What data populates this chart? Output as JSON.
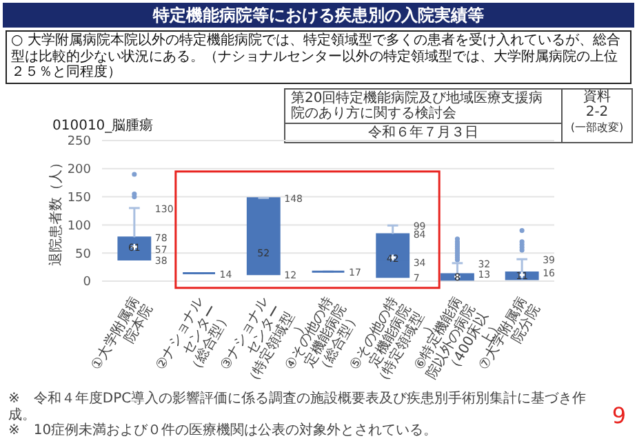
{
  "chart_data": {
    "type": "box",
    "title": "特定機能病院等における疾患別の入院実績等",
    "subtitle": "○ 大学附属病院本院以外の特定機能病院では、特定領域型で多くの患者を受け入れているが、総合型は比較的少ない状況にある。（ナショナルセンター以外の特定領域型では、大学附属病院の上位２５％と同程度）",
    "xlabel": "010010_脳腫瘍",
    "ylabel": "退院患者数（人）",
    "categories": [
      "①大学附属病院本院",
      "②ナショナルセンター（総合型）",
      "③ナショナルセンター（特定領域型）",
      "④その他の特定機能病院（総合型）",
      "⑤その他の特定機能病院（特定領域型）",
      "⑥特定機能病院以外の病院（400床以上）",
      "⑦大学附属病院分院"
    ],
    "color": "#4a76b9",
    "boxes": [
      {
        "low": 38,
        "q1": 38,
        "median": 57,
        "q3": 78,
        "high": 130,
        "mean": 61,
        "outliers": [
          150,
          155,
          190
        ]
      },
      {
        "low": 14,
        "q1": 14,
        "median": 14,
        "q3": 14,
        "high": 14
      },
      {
        "low": 12,
        "q1": 12,
        "median": 52,
        "q3": 148,
        "high": 148
      },
      {
        "low": 17,
        "q1": 17,
        "median": 17,
        "q3": 17,
        "high": 17
      },
      {
        "low": 7,
        "q1": 7,
        "median": 34,
        "q3": 84,
        "high": 99,
        "mean": 42
      },
      {
        "low": 1,
        "q1": 2,
        "median": 4,
        "q3": 13,
        "high": 32,
        "mean": 8,
        "outliers": [
          38,
          42,
          46,
          50,
          54,
          58,
          62,
          66,
          70,
          75
        ]
      },
      {
        "low": 1,
        "q1": 3,
        "median": 7,
        "q3": 16,
        "high": 39,
        "mean": 11,
        "outliers": [
          55,
          60,
          65,
          70,
          90
        ]
      }
    ],
    "ylim": [
      0,
      250
    ],
    "yticks": [
      0,
      50,
      100,
      150,
      200,
      250
    ],
    "grid": "y",
    "annotations": [
      "第20回特定機能病院及び地域医療支援病院のあり方に関する検討会",
      "令和６年７月３日",
      "資料",
      "2-2",
      "(一部改変)",
      "※　令和４年度DPC導入の影響評価に係る調査の施設概要表及び疾患別手術別集計に基づき作成。",
      "※　10症例未満および０件の医療機関は公表の対象外とされている。",
      "9",
      {
        "text": "130",
        "x": "①大学附属病院本院",
        "y": 130
      },
      {
        "text": "78",
        "x": "①大学附属病院本院",
        "y": 78
      },
      {
        "text": "57",
        "x": "①大学附属病院本院",
        "y": 57
      },
      {
        "text": "38",
        "x": "①大学附属病院本院",
        "y": 38
      },
      {
        "text": "61",
        "x": "①大学附属病院本院",
        "y": 61
      },
      {
        "text": "14",
        "x": "②ナショナルセンター（総合型）",
        "y": 14
      },
      {
        "text": "148",
        "x": "③ナショナルセンター（特定領域型）",
        "y": 148
      },
      {
        "text": "52",
        "x": "③ナショナルセンター（特定領域型）",
        "y": 52
      },
      {
        "text": "12",
        "x": "③ナショナルセンター（特定領域型）",
        "y": 12
      },
      {
        "text": "17",
        "x": "④その他の特定機能病院（総合型）",
        "y": 17
      },
      {
        "text": "99",
        "x": "⑤その他の特定機能病院（特定領域型）",
        "y": 99
      },
      {
        "text": "84",
        "x": "⑤その他の特定機能病院（特定領域型）",
        "y": 84
      },
      {
        "text": "34",
        "x": "⑤その他の特定機能病院（特定領域型）",
        "y": 34
      },
      {
        "text": "42",
        "x": "⑤その他の特定機能病院（特定領域型）",
        "y": 42
      },
      {
        "text": "7",
        "x": "⑤その他の特定機能病院（特定領域型）",
        "y": 7
      },
      {
        "text": "32",
        "x": "⑥特定機能病院以外の病院（400床以上）",
        "y": 32
      },
      {
        "text": "13",
        "x": "⑥特定機能病院以外の病院（400床以上）",
        "y": 13
      },
      {
        "text": "8",
        "x": "⑥特定機能病院以外の病院（400床以上）",
        "y": 8
      },
      {
        "text": "39",
        "x": "⑦大学附属病院分院",
        "y": 39
      },
      {
        "text": "16",
        "x": "⑦大学附属病院分院",
        "y": 16
      },
      {
        "text": "11",
        "x": "⑦大学附属病院分院",
        "y": 11
      }
    ]
  }
}
